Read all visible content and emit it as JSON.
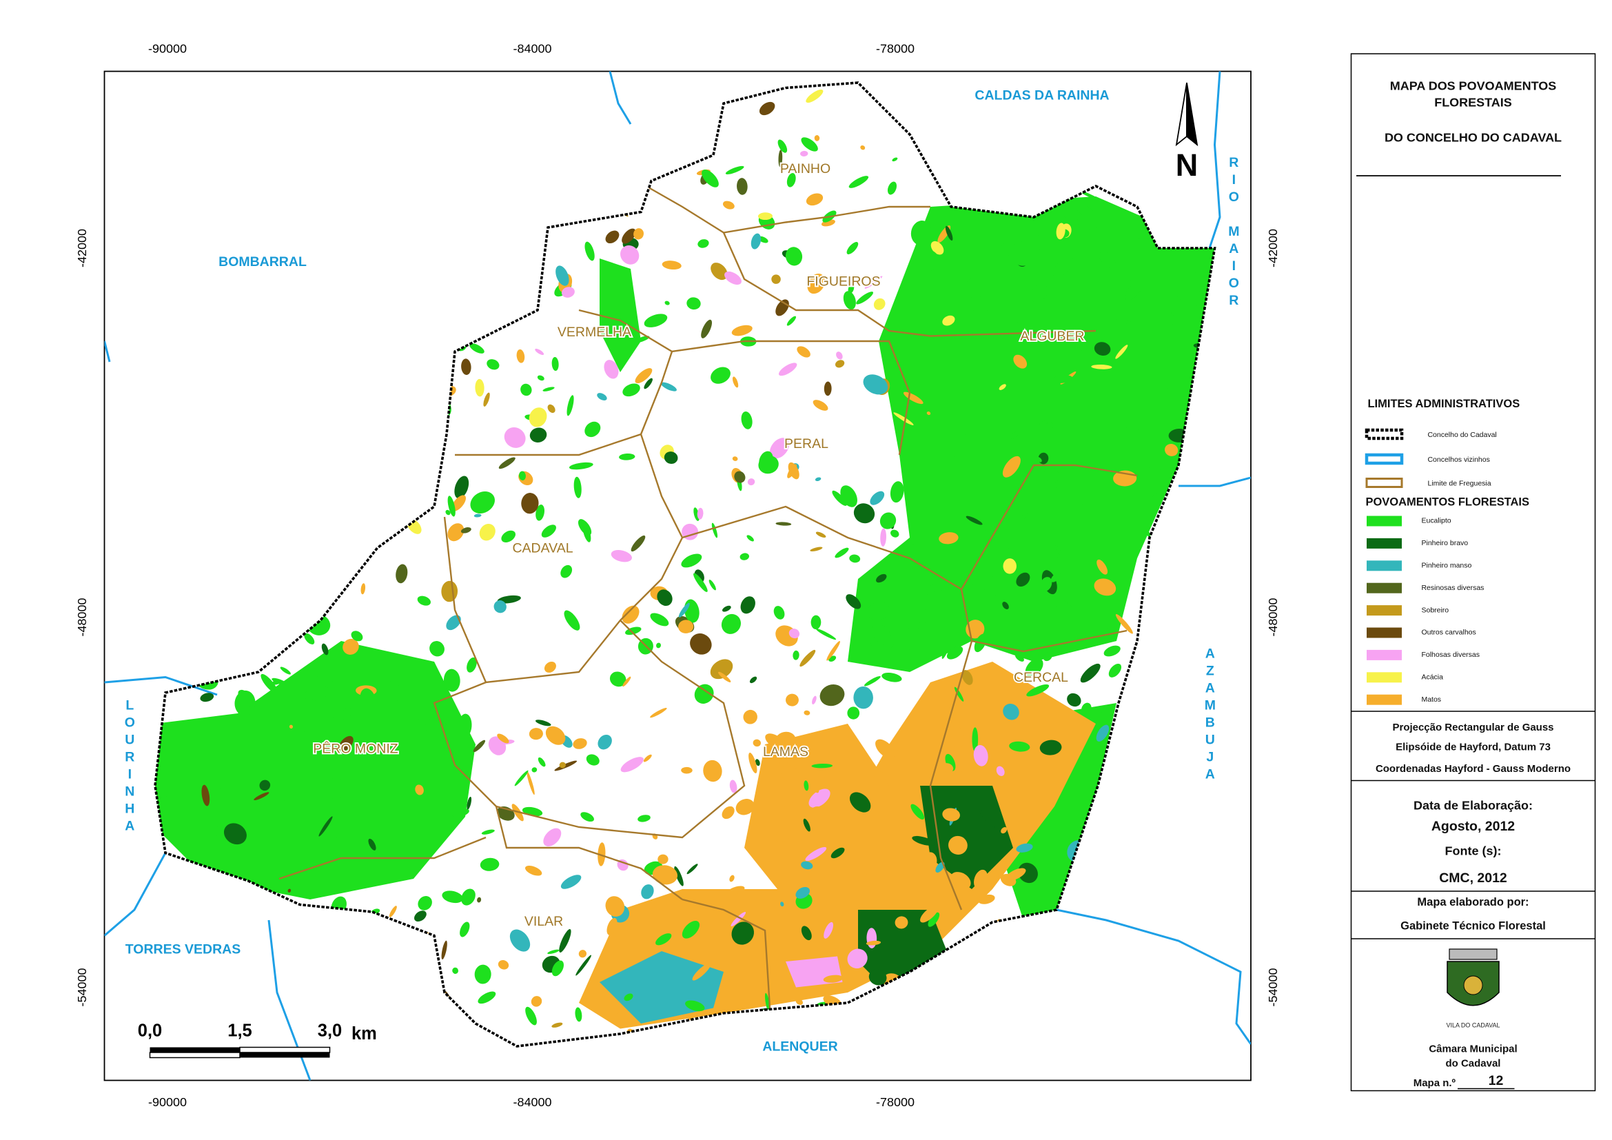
{
  "map": {
    "x_ticks": [
      -90000,
      -84000,
      -78000
    ],
    "y_ticks": [
      -42000,
      -48000,
      -54000
    ],
    "neighbors": [
      "CALDAS DA RAINHA",
      "BOMBARRAL",
      "RIO MAIOR",
      "AZAMBUJA",
      "LOURINHA",
      "TORRES VEDRAS",
      "ALENQUER"
    ],
    "parishes": [
      "PAINHO",
      "FIGUEIROS",
      "VERMELHA",
      "ALGUBER",
      "PERAL",
      "CADAVAL",
      "CERCAL",
      "PÊRO MONIZ",
      "LAMAS",
      "VILAR"
    ],
    "north": "N",
    "scale": {
      "labels": [
        "0,0",
        "1,5",
        "3,0"
      ],
      "unit": "km"
    }
  },
  "panel": {
    "title": [
      "MAPA DOS POVOAMENTOS",
      "FLORESTAIS",
      "DO CONCELHO DO CADAVAL"
    ],
    "admin_heading": "LIMITES ADMINISTRATIVOS",
    "admin_items": [
      "Concelho do Cadaval",
      "Concelhos vizinhos",
      "Limite de Freguesia"
    ],
    "forest_heading": "POVOAMENTOS FLORESTAIS",
    "forest_items": [
      {
        "name": "Eucalipto",
        "color": "#1ee01e"
      },
      {
        "name": "Pinheiro bravo",
        "color": "#0b6b14"
      },
      {
        "name": "Pinheiro manso",
        "color": "#33b6bb"
      },
      {
        "name": "Resinosas diversas",
        "color": "#52661c"
      },
      {
        "name": "Sobreiro",
        "color": "#c49a1c"
      },
      {
        "name": "Outros carvalhos",
        "color": "#6b4a0e"
      },
      {
        "name": "Folhosas diversas",
        "color": "#f7a3f2"
      },
      {
        "name": "Acácia",
        "color": "#f7f24a"
      },
      {
        "name": "Matos",
        "color": "#f6ae2c"
      }
    ],
    "projection": [
      "Projecção Rectangular de Gauss",
      "Elipsóide de Hayford, Datum 73",
      "Coordenadas Hayford - Gauss Moderno"
    ],
    "date_label": "Data de Elaboração:",
    "date": "Agosto, 2012",
    "source_label": "Fonte (s):",
    "source": "CMC, 2012",
    "author_label": "Mapa elaborado por:",
    "author": "Gabinete Técnico Florestal",
    "emblem_text": "VILA DO CADAVAL",
    "org": [
      "Câmara Municipal",
      "do Cadaval"
    ],
    "map_no_label": "Mapa n.º",
    "map_no": 12
  }
}
